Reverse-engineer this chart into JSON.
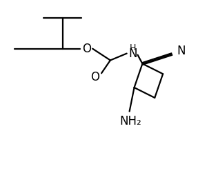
{
  "bg_color": "#ffffff",
  "line_color": "#000000",
  "line_width": 1.6,
  "font_size": 11,
  "figsize": [
    3.0,
    2.7
  ],
  "dpi": 100,
  "xlim": [
    0,
    300
  ],
  "ylim": [
    0,
    270
  ]
}
